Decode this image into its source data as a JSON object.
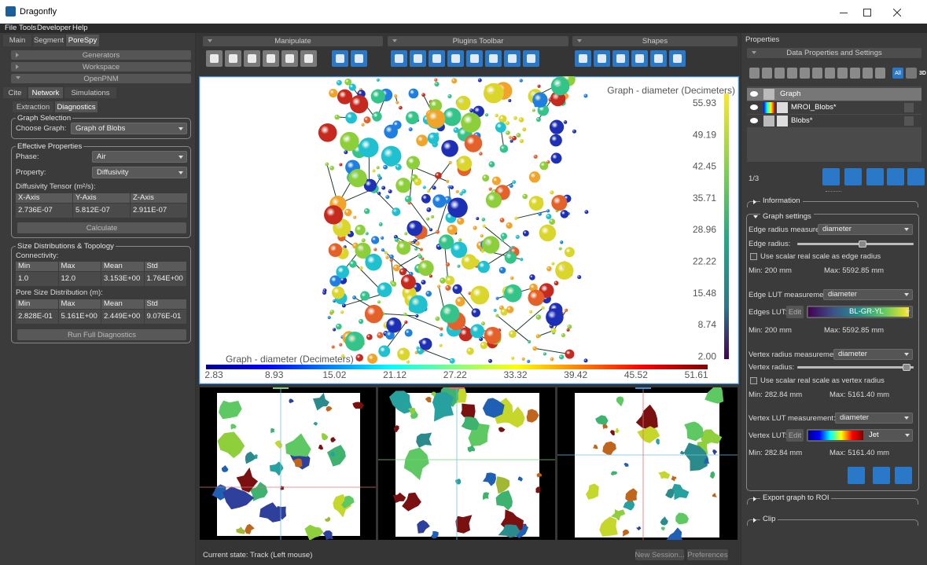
{
  "window": {
    "title": "Dragonfly"
  },
  "menu": [
    "File",
    "Tools",
    "Developer",
    "Help"
  ],
  "left_panel": {
    "tabs": [
      "Main",
      "Segment",
      "PoreSpy"
    ],
    "sections": [
      "Generators",
      "Workspace",
      "OpenPNM"
    ],
    "openpnm_tabs": [
      "Cite",
      "Network",
      "Simulations"
    ],
    "network_tabs": [
      "Extraction",
      "Diagnostics"
    ],
    "graph_selection": {
      "title": "Graph Selection",
      "label": "Choose Graph:",
      "value": "Graph of Blobs"
    },
    "effective_properties": {
      "title": "Effective Properties",
      "phase_label": "Phase:",
      "phase": "Air",
      "property_label": "Property:",
      "property": "Diffusivity",
      "tensor_label": "Diffusivity Tensor (m²/s):",
      "table": {
        "headers": [
          "X-Axis",
          "Y-Axis",
          "Z-Axis"
        ],
        "rows": [
          [
            "2.736E-07",
            "5.812E-07",
            "2.911E-07"
          ]
        ]
      },
      "button": "Calculate"
    },
    "size_distributions": {
      "title": "Size Distributions & Topology",
      "connectivity_label": "Connectivity:",
      "connectivity": {
        "headers": [
          "Min",
          "Max",
          "Mean",
          "Std"
        ],
        "rows": [
          [
            "1.0",
            "12.0",
            "3.153E+00",
            "1.764E+00"
          ]
        ]
      },
      "pore_size_label": "Pore Size Distribution (m):",
      "pore_size": {
        "headers": [
          "Min",
          "Max",
          "Mean",
          "Std"
        ],
        "rows": [
          [
            "2.828E-01",
            "5.161E+00",
            "2.449E+00",
            "9.076E-01"
          ]
        ]
      },
      "button": "Run Full Diagnostics"
    }
  },
  "toolbars": [
    "Manipulate",
    "Plugins Toolbar",
    "Shapes"
  ],
  "view3d": {
    "vertical_colorbar": {
      "title": "Graph - diameter (Decimeters)",
      "ticks": [
        "55.93",
        "49.19",
        "42.45",
        "35.71",
        "28.96",
        "22.22",
        "15.48",
        "8.74",
        "2.00"
      ]
    },
    "horizontal_colorbar": {
      "title": "Graph - diameter (Decimeters)",
      "ticks": [
        "2.83",
        "8.93",
        "15.02",
        "21.12",
        "27.22",
        "33.32",
        "39.42",
        "45.52",
        "51.61"
      ]
    }
  },
  "status_bar": {
    "state": "Current state: Track (Left mouse)",
    "buttons": [
      "New Session...",
      "Preferences"
    ]
  },
  "right_panel": {
    "title": "Properties",
    "header": "Data Properties and Settings",
    "filters": [
      "All",
      "3D"
    ],
    "objects": [
      "Graph",
      "MROI_Blobs*",
      "Blobs*"
    ],
    "count": "1/3",
    "information": "Information",
    "graph_settings": {
      "title": "Graph settings",
      "edge_radius_measurement": {
        "label": "Edge radius measurement:",
        "value": "diameter"
      },
      "edge_radius_label": "Edge radius:",
      "edge_scale_checkbox": "Use scalar real scale as edge radius",
      "edge_radius_min": "Min: 200 mm",
      "edge_radius_max": "Max: 5592.85 mm",
      "edge_lut_measurement": {
        "label": "Edge LUT measurement:",
        "value": "diameter"
      },
      "edges_lut": {
        "label": "Edges LUT:",
        "edit": "Edit",
        "value": "BL-GR-YL"
      },
      "edge_lut_min": "Min: 200 mm",
      "edge_lut_max": "Max: 5592.85 mm",
      "vertex_radius_measurement": {
        "label": "Vertex radius measurement:",
        "value": "diameter"
      },
      "vertex_radius_label": "Vertex radius:",
      "vertex_scale_checkbox": "Use scalar real scale as vertex radius",
      "vertex_radius_min": "Min: 282.84 mm",
      "vertex_radius_max": "Max: 5161.40 mm",
      "vertex_lut_measurement": {
        "label": "Vertex LUT measurement:",
        "value": "diameter"
      },
      "vertex_lut": {
        "label": "Vertex LUT:",
        "edit": "Edit",
        "value": "Jet"
      },
      "vertex_lut_min": "Min: 282.84 mm",
      "vertex_lut_max": "Max: 5161.40 mm"
    },
    "export": "Export graph to ROI",
    "clip": "Clip"
  }
}
